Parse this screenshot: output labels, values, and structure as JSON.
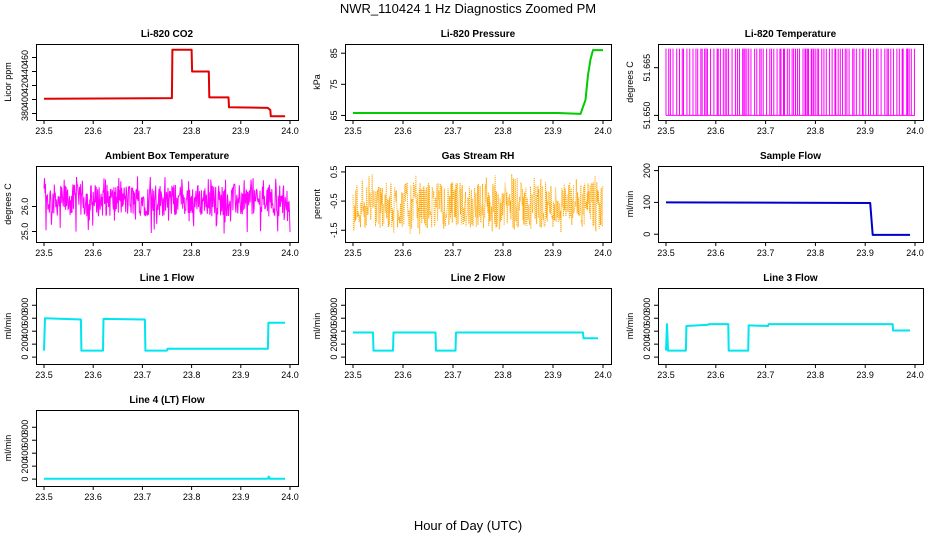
{
  "title": "NWR_110424  1 Hz Diagnostics Zoomed PM",
  "xlabel": "Hour of Day (UTC)",
  "colors": {
    "red": "#e00000",
    "green": "#00cc00",
    "magenta": "#ff00ff",
    "orange": "#ffa500",
    "blue": "#0000cc",
    "cyan": "#00e5ee"
  },
  "chart_data": [
    {
      "type": "line",
      "title": "Li-820 CO2",
      "ylabel": "Licor ppm",
      "color": "#e00000",
      "xlim": [
        23.5,
        24.0
      ],
      "xticks": [
        "23.5",
        "23.6",
        "23.7",
        "23.8",
        "23.9",
        "24.0"
      ],
      "ylim": [
        375,
        475
      ],
      "yticks": [
        380,
        400,
        420,
        440,
        460
      ],
      "series": [
        {
          "x": [
            23.5,
            23.76,
            23.761,
            23.8,
            23.801,
            23.835,
            23.836,
            23.875,
            23.876,
            23.955,
            23.96,
            23.961,
            23.99
          ],
          "y": [
            401,
            402,
            471,
            471,
            440,
            440,
            403,
            403,
            389,
            388,
            385,
            376,
            376
          ]
        }
      ]
    },
    {
      "type": "line",
      "title": "Li-820 Pressure",
      "ylabel": "kPa",
      "color": "#00cc00",
      "xlim": [
        23.5,
        24.0
      ],
      "xticks": [
        "23.5",
        "23.6",
        "23.7",
        "23.8",
        "23.9",
        "24.0"
      ],
      "ylim": [
        64.5,
        87
      ],
      "yticks": [
        65,
        75,
        85
      ],
      "series": [
        {
          "x": [
            23.5,
            23.91,
            23.955,
            23.965,
            23.97,
            23.975,
            23.98,
            24.0
          ],
          "y": [
            65.8,
            65.8,
            65.5,
            70,
            78,
            83,
            86,
            86
          ]
        }
      ]
    },
    {
      "type": "line",
      "title": "Li-820 Temperature",
      "ylabel": "degrees C",
      "color": "#ff00ff",
      "xlim": [
        23.5,
        24.0
      ],
      "xticks": [
        "23.5",
        "23.6",
        "23.7",
        "23.8",
        "23.9",
        "24.0"
      ],
      "ylim": [
        51.6495,
        51.6715
      ],
      "yticks": [
        "51.650",
        "51.665"
      ],
      "series": [
        {
          "description_value": "alternating",
          "min": 51.65,
          "max": 51.671
        }
      ]
    },
    {
      "type": "line",
      "title": "Ambient Box Temperature",
      "ylabel": "degrees C",
      "color": "#ff00ff",
      "xlim": [
        23.5,
        24.0
      ],
      "xticks": [
        "23.5",
        "23.6",
        "23.7",
        "23.8",
        "23.9",
        "24.0"
      ],
      "ylim": [
        24.7,
        27.5
      ],
      "yticks": [
        "25.0",
        "26.0"
      ],
      "series": [
        {
          "mean": 26.25,
          "min": 24.9,
          "max": 27.2
        }
      ]
    },
    {
      "type": "scatter",
      "title": "Gas Stream RH",
      "ylabel": "percent",
      "color": "#ffa500",
      "xlim": [
        23.5,
        24.0
      ],
      "xticks": [
        "23.5",
        "23.6",
        "23.7",
        "23.8",
        "23.9",
        "24.0"
      ],
      "ylim": [
        -1.8,
        0.6
      ],
      "yticks": [
        "-1.5",
        "-0.5",
        "0.5"
      ],
      "series": [
        {
          "mean": -0.65,
          "min": -1.65,
          "max": 0.45
        }
      ]
    },
    {
      "type": "line",
      "title": "Sample Flow",
      "ylabel": "ml/min",
      "color": "#0000cc",
      "xlim": [
        23.5,
        24.0
      ],
      "xticks": [
        "23.5",
        "23.6",
        "23.7",
        "23.8",
        "23.9",
        "24.0"
      ],
      "ylim": [
        -15,
        205
      ],
      "yticks": [
        0,
        100,
        200
      ],
      "series": [
        {
          "x": [
            23.5,
            23.91,
            23.915,
            23.99
          ],
          "y": [
            100,
            98,
            -2,
            -2
          ]
        }
      ]
    },
    {
      "type": "line",
      "title": "Line 1 Flow",
      "ylabel": "ml/min",
      "color": "#00e5ee",
      "xlim": [
        23.5,
        24.0
      ],
      "xticks": [
        "23.5",
        "23.6",
        "23.7",
        "23.8",
        "23.9",
        "24.0"
      ],
      "ylim": [
        -60,
        1020
      ],
      "yticks": [
        0,
        200,
        400,
        600,
        800
      ],
      "series": [
        {
          "x": [
            23.5,
            23.502,
            23.575,
            23.576,
            23.62,
            23.621,
            23.705,
            23.706,
            23.75,
            23.751,
            23.955,
            23.956,
            23.99
          ],
          "y": [
            100,
            600,
            580,
            100,
            100,
            590,
            580,
            100,
            100,
            130,
            130,
            530,
            530
          ]
        }
      ]
    },
    {
      "type": "line",
      "title": "Line 2 Flow",
      "ylabel": "ml/min",
      "color": "#00e5ee",
      "xlim": [
        23.5,
        24.0
      ],
      "xticks": [
        "23.5",
        "23.6",
        "23.7",
        "23.8",
        "23.9",
        "24.0"
      ],
      "ylim": [
        -60,
        1020
      ],
      "yticks": [
        0,
        200,
        400,
        600,
        800
      ],
      "series": [
        {
          "x": [
            23.5,
            23.54,
            23.541,
            23.58,
            23.581,
            23.665,
            23.666,
            23.705,
            23.706,
            23.96,
            23.961,
            23.99
          ],
          "y": [
            380,
            380,
            100,
            100,
            380,
            380,
            100,
            100,
            380,
            380,
            290,
            290
          ]
        }
      ]
    },
    {
      "type": "line",
      "title": "Line 3 Flow",
      "ylabel": "ml/min",
      "color": "#00e5ee",
      "xlim": [
        23.5,
        24.0
      ],
      "xticks": [
        "23.5",
        "23.6",
        "23.7",
        "23.8",
        "23.9",
        "24.0"
      ],
      "ylim": [
        -60,
        1020
      ],
      "yticks": [
        0,
        200,
        400,
        600,
        800
      ],
      "series": [
        {
          "x": [
            23.5,
            23.502,
            23.504,
            23.54,
            23.541,
            23.585,
            23.586,
            23.625,
            23.626,
            23.665,
            23.666,
            23.705,
            23.706,
            23.955,
            23.956,
            23.99
          ],
          "y": [
            100,
            510,
            100,
            100,
            480,
            500,
            510,
            510,
            100,
            100,
            490,
            480,
            510,
            510,
            410,
            410
          ]
        }
      ]
    },
    {
      "type": "line",
      "title": "Line 4 (LT) Flow",
      "ylabel": "ml/min",
      "color": "#00e5ee",
      "xlim": [
        23.5,
        24.0
      ],
      "xticks": [
        "23.5",
        "23.6",
        "23.7",
        "23.8",
        "23.9",
        "24.0"
      ],
      "ylim": [
        -60,
        1020
      ],
      "yticks": [
        0,
        200,
        400,
        600,
        800
      ],
      "series": [
        {
          "x": [
            23.5,
            23.955,
            23.957,
            23.959,
            23.99
          ],
          "y": [
            5,
            5,
            40,
            5,
            5
          ]
        }
      ]
    }
  ]
}
